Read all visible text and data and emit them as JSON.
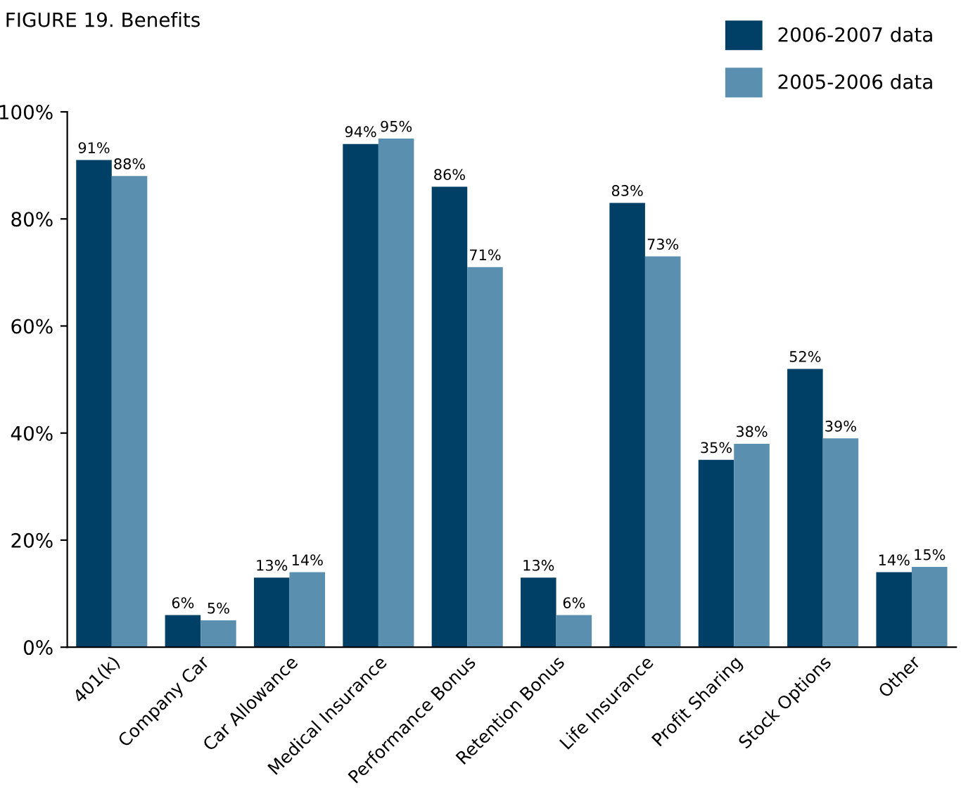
{
  "chart_data": {
    "type": "bar",
    "title": "FIGURE 19. Benefits",
    "categories": [
      "401(k)",
      "Company Car",
      "Car Allowance",
      "Medical Insurance",
      "Performance Bonus",
      "Retention Bonus",
      "Life Insurance",
      "Profit Sharing",
      "Stock Options",
      "Other"
    ],
    "series": [
      {
        "name": "2006-2007 data",
        "color": "#003f66",
        "values": [
          91,
          6,
          13,
          94,
          86,
          13,
          83,
          35,
          52,
          14
        ],
        "value_labels": [
          "91%",
          "6%",
          "13%",
          "94%",
          "86%",
          "13%",
          "83%",
          "35%",
          "52%",
          "14%"
        ]
      },
      {
        "name": "2005-2006 data",
        "color": "#5a8fb0",
        "values": [
          88,
          5,
          14,
          95,
          71,
          6,
          73,
          38,
          39,
          15
        ],
        "value_labels": [
          "88%",
          "5%",
          "14%",
          "95%",
          "71%",
          "6%",
          "73%",
          "38%",
          "39%",
          "15%"
        ]
      }
    ],
    "ylim": [
      0,
      100
    ],
    "yticks": [
      {
        "value": 0,
        "label": "0%"
      },
      {
        "value": 20,
        "label": "20%"
      },
      {
        "value": 40,
        "label": "40%"
      },
      {
        "value": 60,
        "label": "60%"
      },
      {
        "value": 80,
        "label": "80%"
      },
      {
        "value": 100,
        "label": "100%"
      }
    ],
    "grid": false,
    "legend": "top right"
  }
}
